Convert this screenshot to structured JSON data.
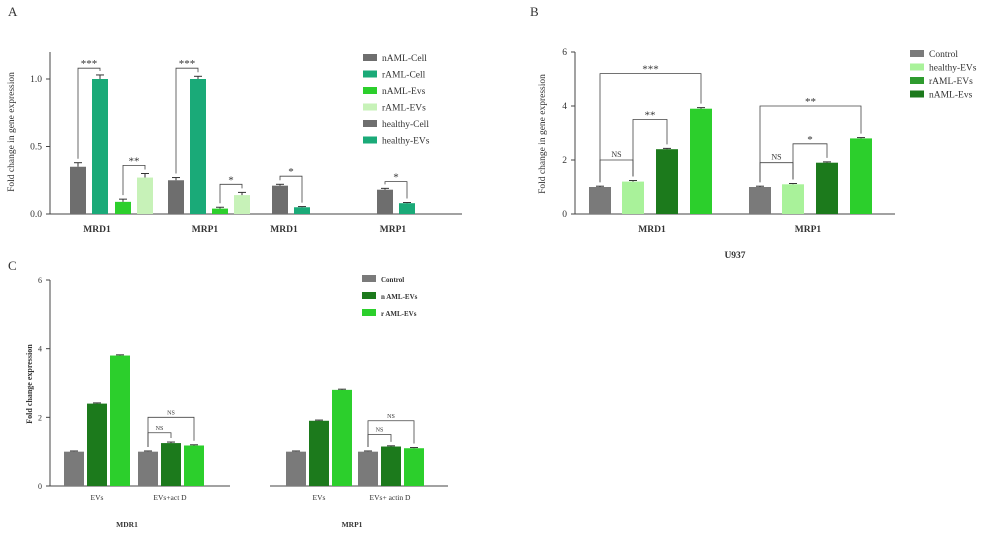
{
  "chart_data": [
    {
      "panel": "A",
      "type": "bar",
      "ylabel": "Fold change in gene expression",
      "yticks": [
        "0.0",
        "0.5",
        "1.0"
      ],
      "ylim": [
        0,
        1.2
      ],
      "group_labels": [
        "MRD1",
        "MRP1",
        "MRD1",
        "MRP1"
      ],
      "legend": [
        "nAML-Cell",
        "rAML-Cell",
        "nAML-Evs",
        "rAML-EVs",
        "healthy-Cell",
        "healthy-EVs"
      ],
      "legend_colors": [
        "#6e6e6e",
        "#1aaa78",
        "#2ccf2c",
        "#c7f2b8",
        "#6e6e6e",
        "#1aaa78"
      ],
      "bars": [
        {
          "group": 0,
          "series": 0,
          "value": 0.35,
          "err": 0.03
        },
        {
          "group": 0,
          "series": 1,
          "value": 1.0,
          "err": 0.03
        },
        {
          "group": 0,
          "series": 2,
          "value": 0.09,
          "err": 0.02
        },
        {
          "group": 0,
          "series": 3,
          "value": 0.27,
          "err": 0.03
        },
        {
          "group": 1,
          "series": 0,
          "value": 0.25,
          "err": 0.02
        },
        {
          "group": 1,
          "series": 1,
          "value": 1.0,
          "err": 0.02
        },
        {
          "group": 1,
          "series": 2,
          "value": 0.04,
          "err": 0.01
        },
        {
          "group": 1,
          "series": 3,
          "value": 0.14,
          "err": 0.02
        },
        {
          "group": 2,
          "series": 4,
          "value": 0.21,
          "err": 0.01
        },
        {
          "group": 2,
          "series": 5,
          "value": 0.05,
          "err": 0.005
        },
        {
          "group": 3,
          "series": 4,
          "value": 0.18,
          "err": 0.01
        },
        {
          "group": 3,
          "series": 5,
          "value": 0.08,
          "err": 0.005
        }
      ],
      "significance": [
        {
          "from": 0,
          "to": 1,
          "label": "***",
          "y": 1.08
        },
        {
          "from": 2,
          "to": 3,
          "label": "**",
          "y": 0.36
        },
        {
          "from": 4,
          "to": 5,
          "label": "***",
          "y": 1.08
        },
        {
          "from": 6,
          "to": 7,
          "label": "*",
          "y": 0.22
        },
        {
          "from": 8,
          "to": 9,
          "label": "*",
          "y": 0.28
        },
        {
          "from": 10,
          "to": 11,
          "label": "*",
          "y": 0.24
        }
      ]
    },
    {
      "panel": "B",
      "type": "bar",
      "ylabel": "Fold change in gene expression",
      "yticks": [
        "0",
        "2",
        "4",
        "6"
      ],
      "ylim": [
        0,
        6
      ],
      "xtitle": "U937",
      "group_labels": [
        "MRD1",
        "MRP1"
      ],
      "legend": [
        "Control",
        "healthy-EVs",
        "rAML-EVs",
        "nAML-Evs"
      ],
      "legend_colors": [
        "#7a7a7a",
        "#a9f29a",
        "#2e9b2e",
        "#1c7a1c"
      ],
      "bar_colors": [
        "#7a7a7a",
        "#a9f29a",
        "#1c7a1c",
        "#2ccf2c"
      ],
      "bars": [
        {
          "group": 0,
          "series": 0,
          "value": 1.0,
          "err": 0.03
        },
        {
          "group": 0,
          "series": 1,
          "value": 1.2,
          "err": 0.04
        },
        {
          "group": 0,
          "series": 2,
          "value": 2.4,
          "err": 0.03
        },
        {
          "group": 0,
          "series": 3,
          "value": 3.9,
          "err": 0.04
        },
        {
          "group": 1,
          "series": 0,
          "value": 1.0,
          "err": 0.03
        },
        {
          "group": 1,
          "series": 1,
          "value": 1.1,
          "err": 0.03
        },
        {
          "group": 1,
          "series": 2,
          "value": 1.9,
          "err": 0.03
        },
        {
          "group": 1,
          "series": 3,
          "value": 2.8,
          "err": 0.03
        }
      ],
      "significance": [
        {
          "from": 0,
          "to": 1,
          "label": "NS",
          "y": 2.0
        },
        {
          "from": 1,
          "to": 2,
          "label": "**",
          "y": 3.5
        },
        {
          "from": 0,
          "to": 3,
          "label": "***",
          "y": 5.2
        },
        {
          "from": 4,
          "to": 5,
          "label": "NS",
          "y": 1.9
        },
        {
          "from": 5,
          "to": 6,
          "label": "*",
          "y": 2.6
        },
        {
          "from": 4,
          "to": 7,
          "label": "**",
          "y": 4.0
        }
      ]
    },
    {
      "panel": "C",
      "type": "bar",
      "ylabel": "Fold change expression",
      "yticks": [
        "0",
        "2",
        "4",
        "6"
      ],
      "ylim": [
        0,
        6
      ],
      "group_labels": [
        "EVs",
        "EVs+act D",
        "EVs",
        "EVs+ actin D"
      ],
      "gene_labels": [
        "MDR1",
        "MRP1"
      ],
      "legend": [
        "Control",
        "n AML-EVs",
        "r AML-EVs"
      ],
      "legend_colors": [
        "#7a7a7a",
        "#1c7a1c",
        "#2ccf2c"
      ],
      "bars": [
        {
          "group": 0,
          "series": 0,
          "value": 1.0,
          "err": 0.02
        },
        {
          "group": 0,
          "series": 1,
          "value": 2.4,
          "err": 0.02
        },
        {
          "group": 0,
          "series": 2,
          "value": 3.8,
          "err": 0.02
        },
        {
          "group": 1,
          "series": 0,
          "value": 1.0,
          "err": 0.02
        },
        {
          "group": 1,
          "series": 1,
          "value": 1.25,
          "err": 0.03
        },
        {
          "group": 1,
          "series": 2,
          "value": 1.18,
          "err": 0.02
        },
        {
          "group": 2,
          "series": 0,
          "value": 1.0,
          "err": 0.02
        },
        {
          "group": 2,
          "series": 1,
          "value": 1.9,
          "err": 0.02
        },
        {
          "group": 2,
          "series": 2,
          "value": 2.8,
          "err": 0.02
        },
        {
          "group": 3,
          "series": 0,
          "value": 1.0,
          "err": 0.02
        },
        {
          "group": 3,
          "series": 1,
          "value": 1.15,
          "err": 0.02
        },
        {
          "group": 3,
          "series": 2,
          "value": 1.1,
          "err": 0.02
        }
      ],
      "significance": [
        {
          "from": 3,
          "to": 4,
          "label": "NS",
          "y": 1.55
        },
        {
          "from": 3,
          "to": 5,
          "label": "NS",
          "y": 2.0
        },
        {
          "from": 9,
          "to": 10,
          "label": "NS",
          "y": 1.5
        },
        {
          "from": 9,
          "to": 11,
          "label": "NS",
          "y": 1.9
        }
      ]
    }
  ]
}
